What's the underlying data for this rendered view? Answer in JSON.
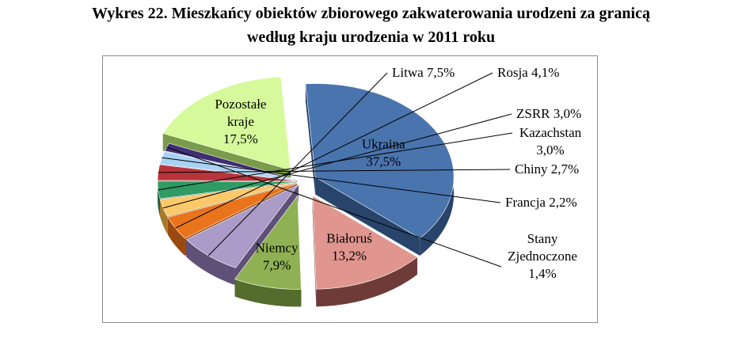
{
  "title": {
    "line1": "Wykres 22. Mieszkańcy obiektów zbiorowego zakwaterowania urodzeni za granicą",
    "line2": "według kraju urodzenia w 2011 roku"
  },
  "chart_data": {
    "type": "pie",
    "title": "Wykres 22. Mieszkańcy obiektów zbiorowego zakwaterowania urodzeni za granicą według kraju urodzenia w 2011 roku",
    "style": "3d-exploded",
    "unit": "%",
    "slices": [
      {
        "name": "Ukraina",
        "value": 37.5,
        "label": "37,5%",
        "color": "#4a74ad",
        "side": "#28446a"
      },
      {
        "name": "Białoruś",
        "value": 13.2,
        "label": "13,2%",
        "color": "#e0958f",
        "side": "#6e3b38"
      },
      {
        "name": "Niemcy",
        "value": 7.9,
        "label": "7,9%",
        "color": "#8fb154",
        "side": "#546c2c"
      },
      {
        "name": "Litwa",
        "value": 7.5,
        "label": "7,5%",
        "color": "#ab9bc8",
        "side": "#5e5077"
      },
      {
        "name": "Rosja",
        "value": 4.1,
        "label": "4,1%",
        "color": "#e9741b",
        "side": "#9a4a10"
      },
      {
        "name": "ZSRR",
        "value": 3.0,
        "label": "3,0%",
        "color": "#fbc86a",
        "side": "#a77b2b"
      },
      {
        "name": "Kazachstan",
        "value": 3.0,
        "label": "3,0%",
        "color": "#2f9a63",
        "side": "#1a5b39"
      },
      {
        "name": "Chiny",
        "value": 2.7,
        "label": "2,7%",
        "color": "#b8333a",
        "side": "#6c1b1f"
      },
      {
        "name": "Francja",
        "value": 2.2,
        "label": "2,2%",
        "color": "#a9d2f3",
        "side": "#5d7f9b"
      },
      {
        "name": "Stany Zjednoczone",
        "value": 1.4,
        "label": "1,4%",
        "color": "#3e2f72",
        "side": "#1f173b"
      },
      {
        "name": "Pozostałe kraje",
        "value": 17.5,
        "label": "17,5%",
        "color": "#d6fa9b",
        "side": "#7a9a4c"
      }
    ]
  }
}
